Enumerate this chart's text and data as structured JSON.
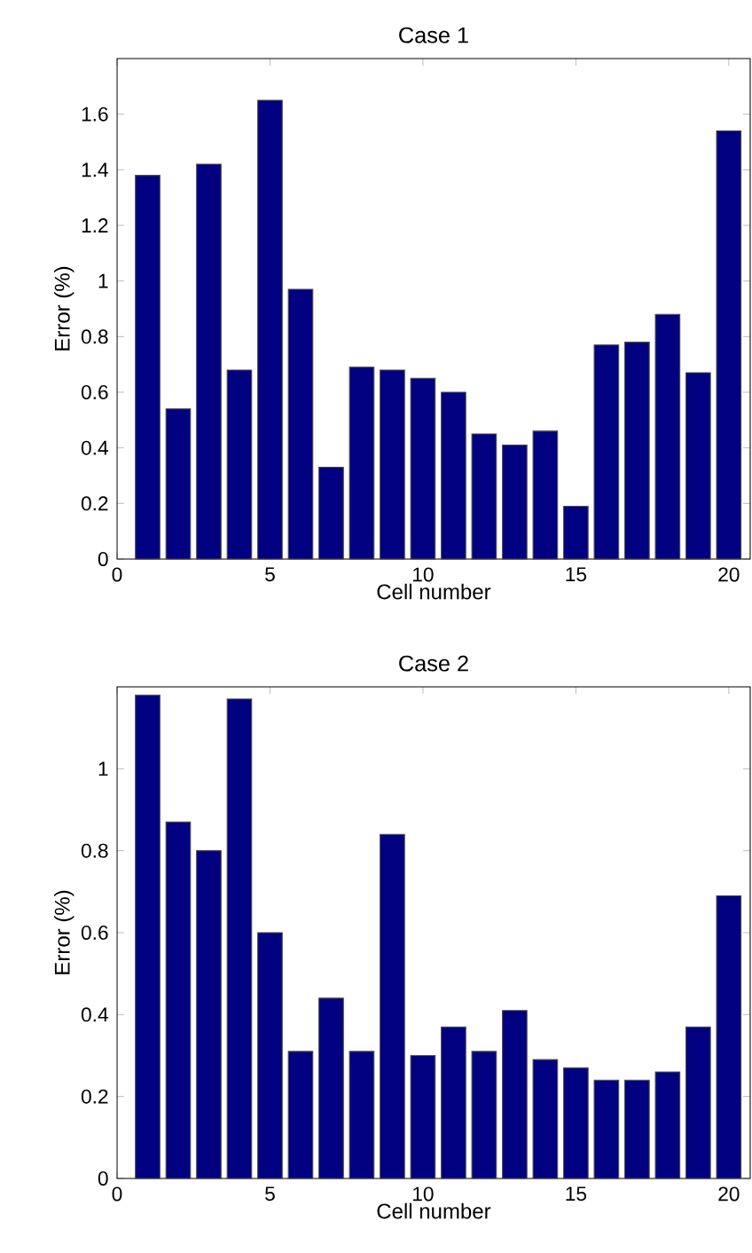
{
  "chart_data": [
    {
      "type": "bar",
      "title": "Case 1",
      "xlabel": "Cell number",
      "ylabel": "Error (%)",
      "color": "#000080",
      "x": [
        1,
        2,
        3,
        4,
        5,
        6,
        7,
        8,
        9,
        10,
        11,
        12,
        13,
        14,
        15,
        16,
        17,
        18,
        19,
        20
      ],
      "values": [
        1.38,
        0.54,
        1.42,
        0.68,
        1.65,
        0.97,
        0.33,
        0.69,
        0.68,
        0.65,
        0.6,
        0.45,
        0.41,
        0.46,
        0.19,
        0.77,
        0.78,
        0.88,
        0.67,
        1.54
      ],
      "xlim": [
        0,
        20.7
      ],
      "ylim": [
        0,
        1.8
      ],
      "xticks": [
        0,
        5,
        10,
        15,
        20
      ],
      "yticks": [
        0,
        0.2,
        0.4,
        0.6,
        0.8,
        1,
        1.2,
        1.4,
        1.6
      ],
      "grid": false
    },
    {
      "type": "bar",
      "title": "Case 2",
      "xlabel": "Cell number",
      "ylabel": "Error (%)",
      "color": "#000080",
      "x": [
        1,
        2,
        3,
        4,
        5,
        6,
        7,
        8,
        9,
        10,
        11,
        12,
        13,
        14,
        15,
        16,
        17,
        18,
        19,
        20
      ],
      "values": [
        1.18,
        0.87,
        0.8,
        1.17,
        0.6,
        0.31,
        0.44,
        0.31,
        0.84,
        0.3,
        0.37,
        0.31,
        0.41,
        0.29,
        0.27,
        0.24,
        0.24,
        0.26,
        0.37,
        0.69
      ],
      "xlim": [
        0,
        20.7
      ],
      "ylim": [
        0,
        1.2
      ],
      "xticks": [
        0,
        5,
        10,
        15,
        20
      ],
      "yticks": [
        0,
        0.2,
        0.4,
        0.6,
        0.8,
        1
      ],
      "grid": false
    }
  ]
}
